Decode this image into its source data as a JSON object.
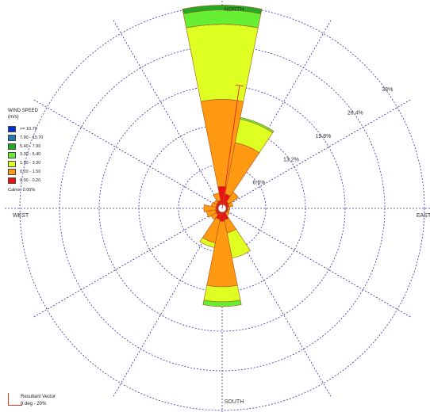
{
  "chart_data": {
    "type": "wind-rose",
    "directions": {
      "north": "NORTH",
      "south": "SOUTH",
      "east": "EAST",
      "west": "WEST"
    },
    "ring_labels": [
      "6.6%",
      "13.2%",
      "19.8%",
      "26.4%",
      "33%"
    ],
    "ring_values": [
      6.6,
      13.2,
      19.8,
      26.4,
      33
    ],
    "sector_width_deg": 22.5,
    "speed_bins": [
      {
        "label": ">= 10.70",
        "color": "#0033cc"
      },
      {
        "label": "7.90 - 10.70",
        "color": "#1f77b4"
      },
      {
        "label": "5.40 - 7.90",
        "color": "#22aa22"
      },
      {
        "label": "3.30 - 5.40",
        "color": "#66ee33"
      },
      {
        "label": "1.50 - 3.30",
        "color": "#ddff22"
      },
      {
        "label": "0.20 - 1.50",
        "color": "#ff9911"
      },
      {
        "label": "0.00 - 0.20",
        "color": "#ee1111"
      }
    ],
    "sectors": [
      {
        "dir_deg": 0,
        "cumulative": [
          3.0,
          17.5,
          30.0,
          32.4,
          33.2
        ]
      },
      {
        "dir_deg": 22.5,
        "cumulative": [
          1.8,
          10.5,
          14.5,
          14.8
        ]
      },
      {
        "dir_deg": 45,
        "cumulative": [
          0.7,
          2.6
        ]
      },
      {
        "dir_deg": 67.5,
        "cumulative": [
          0.5,
          1.2
        ]
      },
      {
        "dir_deg": 90,
        "cumulative": [
          0.3,
          0.6
        ]
      },
      {
        "dir_deg": 112.5,
        "cumulative": [
          0.3,
          0.6
        ]
      },
      {
        "dir_deg": 135,
        "cumulative": [
          0.3,
          0.8
        ]
      },
      {
        "dir_deg": 157.5,
        "cumulative": [
          1.3,
          3.5,
          7.8
        ]
      },
      {
        "dir_deg": 180,
        "cumulative": [
          1.5,
          12.4,
          14.9,
          15.7
        ]
      },
      {
        "dir_deg": 202.5,
        "cumulative": [
          1.2,
          5.2,
          6.0
        ]
      },
      {
        "dir_deg": 225,
        "cumulative": [
          0.6,
          1.6
        ]
      },
      {
        "dir_deg": 247.5,
        "cumulative": [
          0.5,
          2.0
        ]
      },
      {
        "dir_deg": 270,
        "cumulative": [
          0.4,
          2.4
        ]
      },
      {
        "dir_deg": 292.5,
        "cumulative": [
          0.4,
          1.2
        ]
      },
      {
        "dir_deg": 315,
        "cumulative": [
          0.5,
          1.0
        ]
      },
      {
        "dir_deg": 337.5,
        "cumulative": [
          0.7,
          2.0
        ]
      }
    ],
    "resultant": {
      "dir_deg": 8,
      "value_pct": 20
    }
  },
  "legend": {
    "title_line1": "WIND SPEED",
    "title_line2": "(m/s)",
    "calms": "Calms: 0.00%"
  },
  "resultant_vector": {
    "title": "Resultant Vector",
    "value": "8 deg - 20%"
  },
  "colors": {
    "grid": "#3333aa",
    "outline": "#aa5522",
    "resultant": "#e03020"
  }
}
